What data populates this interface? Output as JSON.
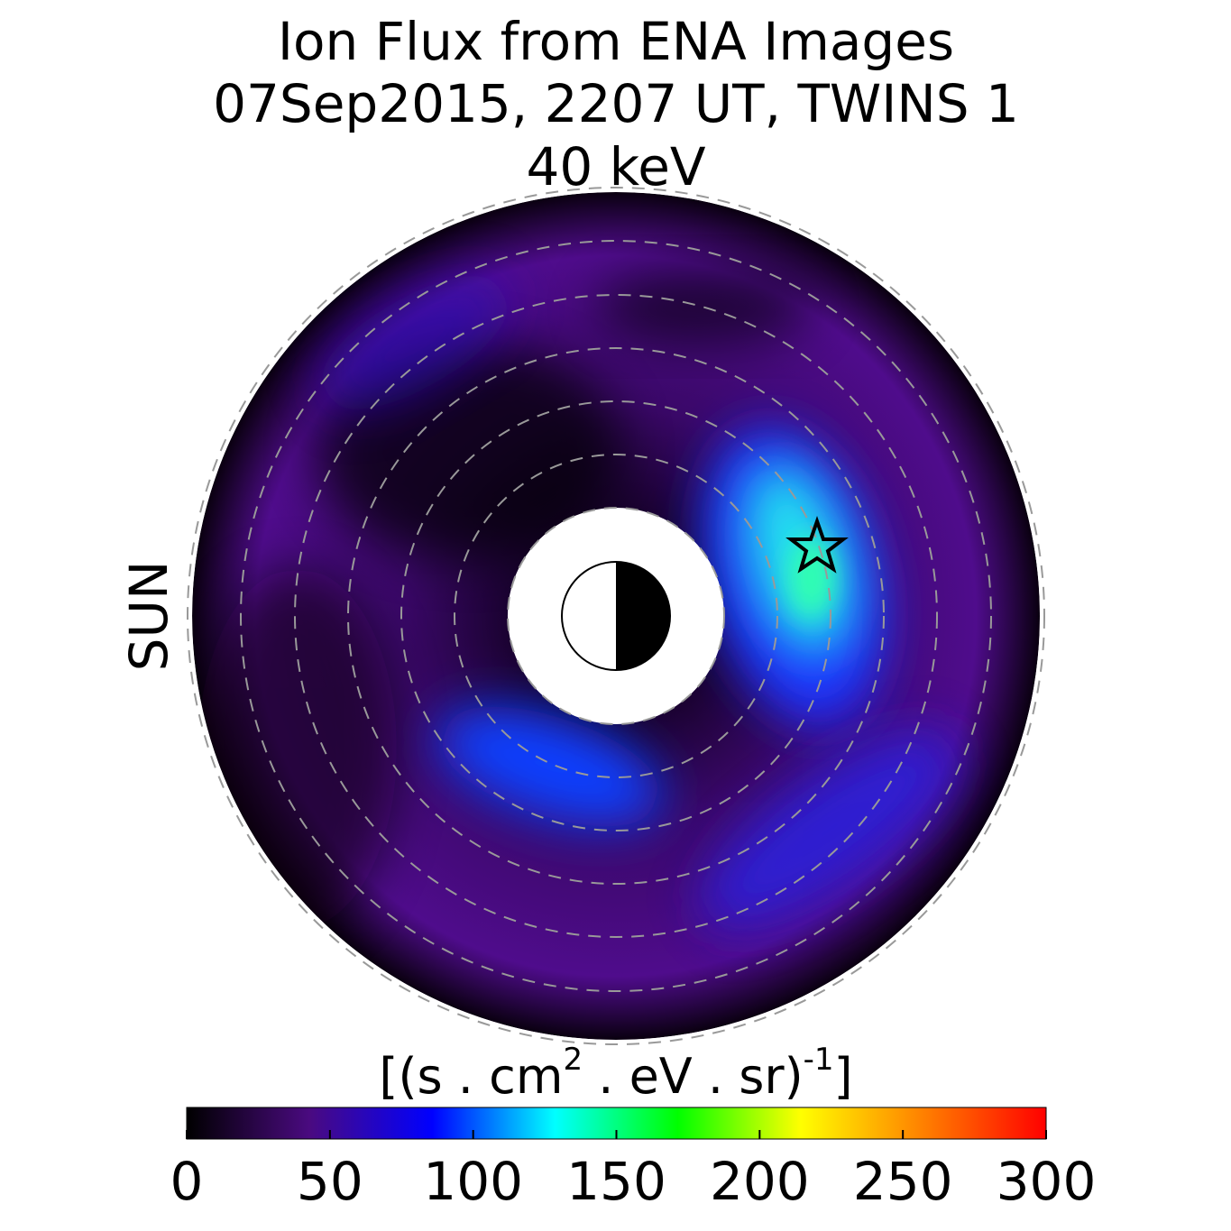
{
  "chart_data": {
    "type": "heatmap",
    "title": [
      "Ion Flux from  ENA Images",
      "07Sep2015, 2207 UT,  TWINS 1",
      "40 keV"
    ],
    "side_label": "SUN",
    "side_label_color": "#f5a000",
    "colorbar": {
      "label_parts": [
        "[(s . cm",
        "2",
        "  . eV . sr)",
        "-1",
        "]"
      ],
      "clim": [
        0,
        300
      ],
      "ticks": [
        0,
        50,
        100,
        150,
        200,
        250,
        300
      ],
      "colormap": [
        "#000000",
        "#4a0a80",
        "#0000ff",
        "#00ffff",
        "#00ff00",
        "#ffff00",
        "#ff8000",
        "#ff0000"
      ]
    }
  }
}
